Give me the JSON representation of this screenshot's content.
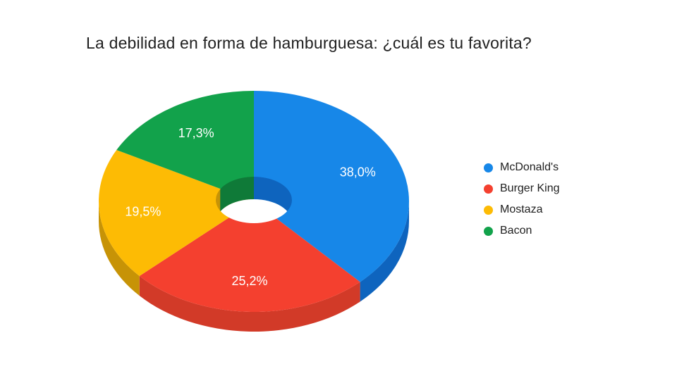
{
  "title": "La debilidad en forma de hamburguesa: ¿cuál es tu favorita?",
  "chart_data": {
    "type": "pie",
    "variant": "3d-donut",
    "title": "La debilidad en forma de hamburguesa: ¿cuál es tu favorita?",
    "categories": [
      "McDonald's",
      "Burger King",
      "Mostaza",
      "Bacon"
    ],
    "values": [
      38.0,
      25.2,
      19.5,
      17.3
    ],
    "value_labels": [
      "38,0%",
      "25,2%",
      "19,5%",
      "17,3%"
    ],
    "colors": [
      "#1787E8",
      "#F4402F",
      "#FDBB04",
      "#12A24B"
    ],
    "side_colors": [
      "#0E64BE",
      "#D23A28",
      "#C79306",
      "#0F7A38"
    ],
    "label_color": "#ffffff",
    "title_color": "#212121",
    "legend_text_color": "#212121",
    "background": "#ffffff",
    "legend_position": "right",
    "start_angle_deg": 0,
    "direction": "clockwise",
    "donut_hole": true
  }
}
